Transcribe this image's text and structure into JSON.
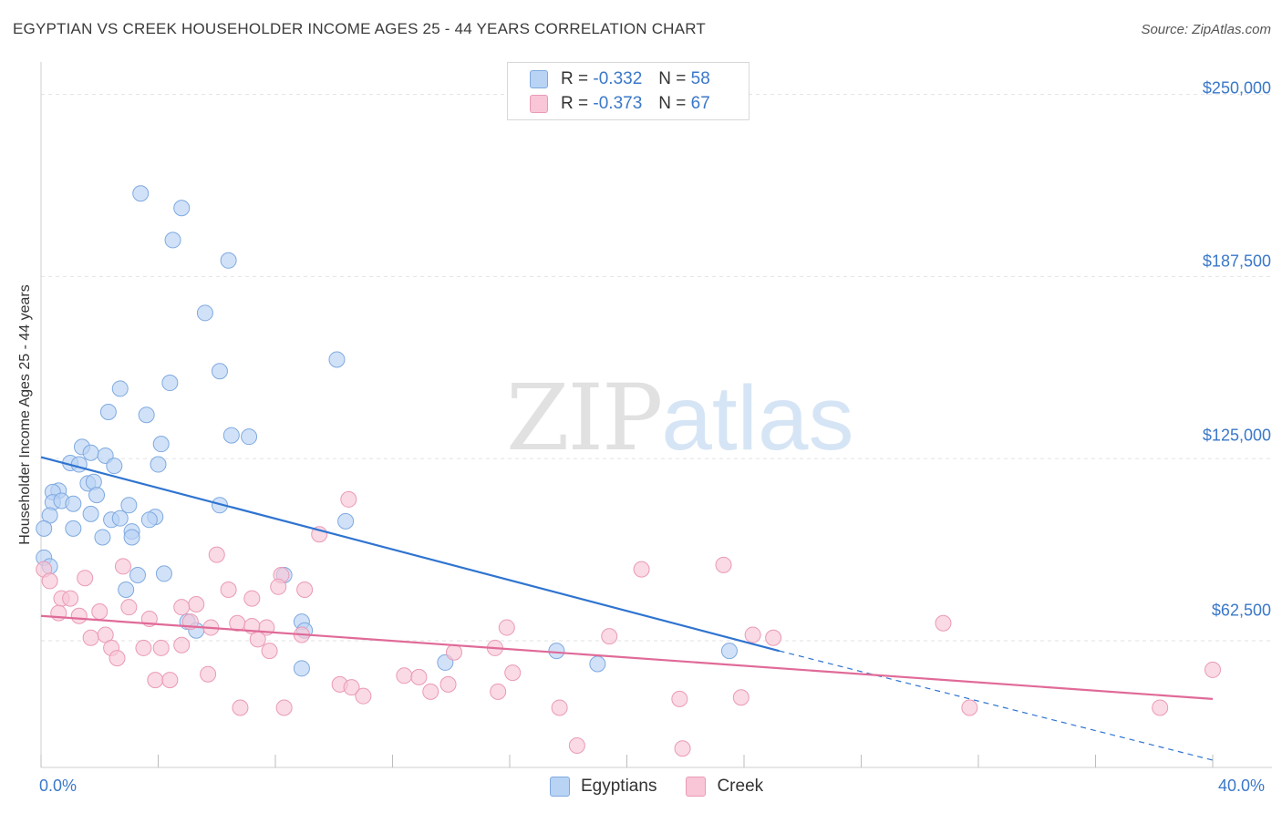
{
  "title": "EGYPTIAN VS CREEK HOUSEHOLDER INCOME AGES 25 - 44 YEARS CORRELATION CHART",
  "source": "Source: ZipAtlas.com",
  "watermark": {
    "zip": "ZIP",
    "atlas": "atlas"
  },
  "legend_top": [
    {
      "r_label": "R =",
      "r_value": "-0.332",
      "n_label": "N =",
      "n_value": "58"
    },
    {
      "r_label": "R =",
      "r_value": "-0.373",
      "n_label": "N =",
      "n_value": "67"
    }
  ],
  "legend_bottom": [
    "Egyptians",
    "Creek"
  ],
  "colors": {
    "blue_fill": "#b9d3f4",
    "blue_stroke": "#7fa9e0",
    "blue_line": "#2f74d0",
    "pink_fill": "#f8c6d6",
    "pink_stroke": "#ea9ab6",
    "pink_line": "#e06a98",
    "grid": "#e2e2e2",
    "axis_text": "#3a78c9"
  },
  "chart_data": {
    "type": "scatter",
    "title": "EGYPTIAN VS CREEK HOUSEHOLDER INCOME AGES 25 - 44 YEARS CORRELATION CHART",
    "xlabel": "",
    "ylabel": "Householder Income Ages 25 - 44 years",
    "xlim": [
      0,
      40
    ],
    "ylim": [
      19000,
      258000
    ],
    "y_ticks": [
      62500,
      125000,
      187500,
      250000
    ],
    "y_tick_labels": [
      "$62,500",
      "$125,000",
      "$187,500",
      "$250,000"
    ],
    "x_tick_labels": [
      "0.0%",
      "40.0%"
    ],
    "grid": true,
    "legend_placement": "top-center",
    "series": [
      {
        "name": "Egyptians",
        "color": "#2f74d0",
        "r": -0.332,
        "n": 58,
        "trend": {
          "x0": 0,
          "y0": 125500,
          "x1": 25.2,
          "y1": 59000,
          "dashed_to_x": 40,
          "dashed_to_y": 21500
        },
        "points": [
          [
            3.4,
            216000
          ],
          [
            4.8,
            211000
          ],
          [
            4.5,
            200000
          ],
          [
            6.4,
            193000
          ],
          [
            5.6,
            175000
          ],
          [
            10.1,
            159000
          ],
          [
            6.1,
            155000
          ],
          [
            4.4,
            151000
          ],
          [
            2.7,
            149000
          ],
          [
            2.3,
            141000
          ],
          [
            3.6,
            140000
          ],
          [
            6.5,
            133000
          ],
          [
            7.1,
            132500
          ],
          [
            4.1,
            130000
          ],
          [
            1.4,
            129000
          ],
          [
            1.7,
            127000
          ],
          [
            2.2,
            126000
          ],
          [
            1.0,
            123500
          ],
          [
            1.3,
            123000
          ],
          [
            2.5,
            122500
          ],
          [
            4.0,
            123000
          ],
          [
            1.6,
            116500
          ],
          [
            1.8,
            117000
          ],
          [
            0.6,
            114000
          ],
          [
            0.4,
            113500
          ],
          [
            1.9,
            112500
          ],
          [
            0.4,
            110000
          ],
          [
            0.7,
            110500
          ],
          [
            1.1,
            109500
          ],
          [
            6.1,
            109000
          ],
          [
            3.0,
            109000
          ],
          [
            0.3,
            105500
          ],
          [
            1.7,
            106000
          ],
          [
            3.9,
            105000
          ],
          [
            2.4,
            104000
          ],
          [
            3.7,
            104000
          ],
          [
            2.7,
            104500
          ],
          [
            10.4,
            103500
          ],
          [
            0.1,
            101000
          ],
          [
            1.1,
            101000
          ],
          [
            3.1,
            100000
          ],
          [
            3.1,
            98000
          ],
          [
            2.1,
            98000
          ],
          [
            0.1,
            91000
          ],
          [
            3.3,
            85000
          ],
          [
            4.2,
            85500
          ],
          [
            8.3,
            85000
          ],
          [
            2.9,
            80000
          ],
          [
            8.9,
            69000
          ],
          [
            5.0,
            69000
          ],
          [
            9.0,
            66000
          ],
          [
            5.3,
            66000
          ],
          [
            17.6,
            59000
          ],
          [
            23.5,
            59000
          ],
          [
            13.8,
            55000
          ],
          [
            19.0,
            54500
          ],
          [
            8.9,
            53000
          ],
          [
            0.3,
            88000
          ]
        ]
      },
      {
        "name": "Creek",
        "color": "#e06a98",
        "r": -0.373,
        "n": 67,
        "trend": {
          "x0": 0,
          "y0": 71000,
          "x1": 40,
          "y1": 42500
        },
        "points": [
          [
            0.1,
            87000
          ],
          [
            0.3,
            83000
          ],
          [
            1.5,
            84000
          ],
          [
            2.8,
            88000
          ],
          [
            6.0,
            92000
          ],
          [
            8.2,
            85000
          ],
          [
            10.5,
            111000
          ],
          [
            9.5,
            99000
          ],
          [
            20.5,
            87000
          ],
          [
            23.3,
            88500
          ],
          [
            0.7,
            77000
          ],
          [
            1.0,
            77000
          ],
          [
            5.3,
            75000
          ],
          [
            4.8,
            74000
          ],
          [
            3.0,
            74000
          ],
          [
            7.2,
            77000
          ],
          [
            8.1,
            81000
          ],
          [
            6.4,
            80000
          ],
          [
            9.0,
            80000
          ],
          [
            0.6,
            72000
          ],
          [
            2.0,
            72500
          ],
          [
            1.3,
            71000
          ],
          [
            3.7,
            70000
          ],
          [
            5.1,
            69000
          ],
          [
            6.7,
            68500
          ],
          [
            7.7,
            67000
          ],
          [
            5.8,
            67000
          ],
          [
            7.2,
            67500
          ],
          [
            1.7,
            63500
          ],
          [
            2.2,
            64500
          ],
          [
            8.9,
            64500
          ],
          [
            7.4,
            63000
          ],
          [
            15.9,
            67000
          ],
          [
            19.4,
            64000
          ],
          [
            24.3,
            64500
          ],
          [
            25.0,
            63500
          ],
          [
            30.8,
            68500
          ],
          [
            2.4,
            60000
          ],
          [
            3.5,
            60000
          ],
          [
            4.1,
            60000
          ],
          [
            4.8,
            61000
          ],
          [
            7.8,
            59000
          ],
          [
            14.1,
            58500
          ],
          [
            15.5,
            60000
          ],
          [
            2.6,
            56500
          ],
          [
            3.9,
            49000
          ],
          [
            4.4,
            49000
          ],
          [
            5.7,
            51000
          ],
          [
            12.4,
            50500
          ],
          [
            12.9,
            50000
          ],
          [
            16.1,
            51500
          ],
          [
            40.0,
            52500
          ],
          [
            10.2,
            47500
          ],
          [
            10.6,
            46500
          ],
          [
            11.0,
            43500
          ],
          [
            13.3,
            45000
          ],
          [
            13.9,
            47500
          ],
          [
            15.6,
            45000
          ],
          [
            21.8,
            42500
          ],
          [
            23.9,
            43000
          ],
          [
            6.8,
            39500
          ],
          [
            8.3,
            39500
          ],
          [
            17.7,
            39500
          ],
          [
            31.7,
            39500
          ],
          [
            38.2,
            39500
          ],
          [
            18.3,
            26500
          ],
          [
            21.9,
            25500
          ]
        ]
      }
    ]
  }
}
